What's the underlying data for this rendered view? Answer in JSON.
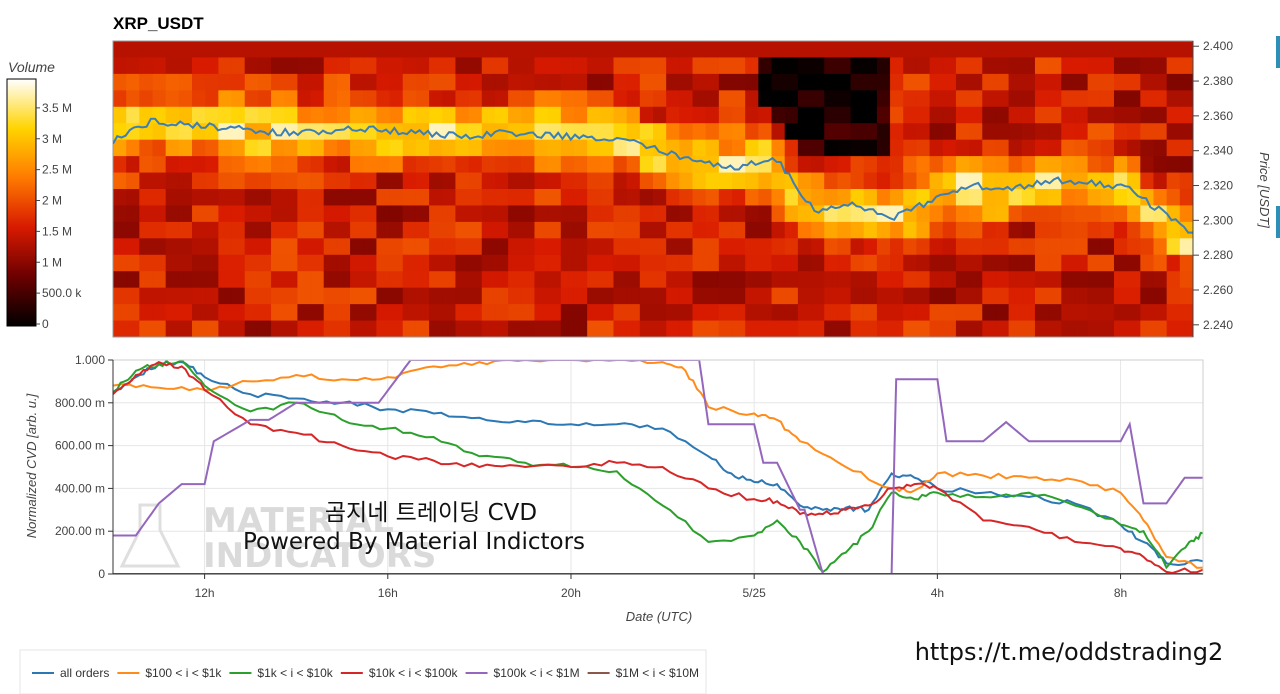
{
  "chart_data": [
    {
      "type": "heatmap",
      "title": "XRP_USDT",
      "colorbar": {
        "label": "Volume",
        "ticks": [
          "0",
          "500.0 k",
          "1 M",
          "1.5 M",
          "2 M",
          "2.5 M",
          "3 M",
          "3.5 M"
        ],
        "range": [
          0,
          4000000
        ]
      },
      "y_right_label": "Price [USDT]",
      "y_right_ticks": [
        "2.240",
        "2.260",
        "2.280",
        "2.300",
        "2.320",
        "2.340",
        "2.360",
        "2.380",
        "2.400"
      ],
      "ylim": [
        2.233,
        2.403
      ],
      "price_line_color": "#3a7fb8",
      "price_series": {
        "x": [
          0,
          1,
          2,
          3,
          4,
          5,
          6,
          7,
          8,
          9,
          10,
          11,
          12,
          13,
          14,
          15,
          16,
          17,
          18,
          19,
          20,
          21,
          22,
          23,
          24,
          25,
          26,
          27,
          28
        ],
        "y": [
          2.346,
          2.357,
          2.355,
          2.353,
          2.351,
          2.35,
          2.353,
          2.352,
          2.35,
          2.348,
          2.35,
          2.349,
          2.348,
          2.347,
          2.34,
          2.334,
          2.33,
          2.336,
          2.305,
          2.309,
          2.302,
          2.311,
          2.32,
          2.318,
          2.323,
          2.322,
          2.319,
          2.303,
          2.287
        ]
      }
    },
    {
      "type": "line",
      "xlabel": "Date (UTC)",
      "ylabel": "Normalized CVD [arb. u.]",
      "x_ticks": [
        "12h",
        "16h",
        "20h",
        "5/25",
        "4h",
        "8h"
      ],
      "x_tick_positions": [
        12,
        16,
        20,
        24,
        28,
        32
      ],
      "xlim": [
        10,
        33.8
      ],
      "y_ticks": [
        "0",
        "200.00 m",
        "400.00 m",
        "600.00 m",
        "800.00 m",
        "1.000"
      ],
      "ylim": [
        0,
        1
      ],
      "grid": true,
      "legend_position": "bottom-left",
      "series": [
        {
          "name": "all orders",
          "color": "#2b78b4",
          "x": [
            10,
            10.5,
            11,
            11.5,
            12,
            13,
            14,
            15,
            16,
            17,
            18,
            19,
            20,
            21,
            22,
            23,
            23.5,
            24,
            24.5,
            25,
            25.5,
            26,
            26.5,
            27,
            27.5,
            28,
            29,
            30,
            31,
            32,
            32.5,
            33,
            33.8
          ],
          "y": [
            0.85,
            0.92,
            0.98,
            0.99,
            0.92,
            0.84,
            0.82,
            0.8,
            0.77,
            0.75,
            0.73,
            0.71,
            0.7,
            0.7,
            0.68,
            0.55,
            0.47,
            0.43,
            0.42,
            0.32,
            0.3,
            0.31,
            0.3,
            0.47,
            0.45,
            0.4,
            0.38,
            0.36,
            0.33,
            0.23,
            0.15,
            0.05,
            0.06
          ]
        },
        {
          "name": "$100 < i < $1k",
          "color": "#ff8c1a",
          "x": [
            10,
            11,
            12,
            13,
            14,
            15,
            16,
            17,
            18,
            19,
            20,
            21,
            22,
            22.5,
            23,
            24,
            24.5,
            25,
            26,
            27,
            27.5,
            28,
            29,
            30,
            31,
            32,
            32.5,
            33,
            33.8
          ],
          "y": [
            0.88,
            0.87,
            0.86,
            0.9,
            0.93,
            0.91,
            0.92,
            0.97,
            0.99,
            1.0,
            1.0,
            1.0,
            0.99,
            0.95,
            0.78,
            0.75,
            0.72,
            0.62,
            0.5,
            0.4,
            0.39,
            0.47,
            0.46,
            0.45,
            0.44,
            0.38,
            0.25,
            0.08,
            0.03
          ]
        },
        {
          "name": "$1k < i < $10k",
          "color": "#2ca02c",
          "x": [
            10,
            10.5,
            11,
            11.5,
            12,
            13,
            14,
            15,
            16,
            17,
            18,
            19,
            20,
            21,
            22,
            23,
            24,
            24.5,
            25,
            25.5,
            26,
            26.5,
            27,
            27.5,
            28,
            29,
            30,
            31,
            32,
            32.5,
            33,
            33.5,
            33.8
          ],
          "y": [
            0.85,
            0.95,
            0.98,
            1.0,
            0.88,
            0.76,
            0.8,
            0.72,
            0.68,
            0.64,
            0.55,
            0.52,
            0.5,
            0.48,
            0.32,
            0.15,
            0.18,
            0.25,
            0.15,
            0.01,
            0.1,
            0.2,
            0.38,
            0.35,
            0.38,
            0.36,
            0.38,
            0.32,
            0.23,
            0.2,
            0.03,
            0.15,
            0.19
          ]
        },
        {
          "name": "$10k < i < $100k",
          "color": "#d62728",
          "x": [
            10,
            10.5,
            11,
            11.5,
            12,
            13,
            14,
            15,
            16,
            17,
            18,
            19,
            20,
            21,
            22,
            23,
            24,
            24.5,
            25,
            25.5,
            26,
            26.5,
            27,
            27.5,
            28,
            29,
            30,
            31,
            32,
            32.5,
            33,
            33.8
          ],
          "y": [
            0.84,
            0.93,
            0.99,
            0.97,
            0.86,
            0.7,
            0.66,
            0.6,
            0.55,
            0.53,
            0.5,
            0.5,
            0.5,
            0.52,
            0.5,
            0.4,
            0.35,
            0.34,
            0.28,
            0.28,
            0.3,
            0.32,
            0.4,
            0.42,
            0.4,
            0.25,
            0.22,
            0.15,
            0.12,
            0.08,
            0.01,
            0.02
          ]
        },
        {
          "name": "$100k < i < $1M",
          "color": "#9467bd",
          "x": [
            10,
            10.5,
            11,
            11.5,
            12,
            12.2,
            13,
            13.4,
            14,
            15,
            15.8,
            16.5,
            17,
            18,
            19,
            20,
            21,
            22,
            22.8,
            23,
            23.5,
            24,
            24.2,
            24.5,
            25,
            25.1,
            25.5,
            26,
            27,
            27.1,
            28,
            28.2,
            29,
            29.5,
            30,
            31,
            32,
            32.2,
            32.5,
            33,
            33.4,
            33.8
          ],
          "y": [
            0.18,
            0.18,
            0.33,
            0.42,
            0.42,
            0.62,
            0.72,
            0.72,
            0.8,
            0.8,
            0.8,
            1.0,
            1.0,
            1.0,
            1.0,
            1.0,
            1.0,
            1.0,
            1.0,
            0.7,
            0.7,
            0.7,
            0.52,
            0.52,
            0.3,
            0.3,
            0.0,
            0.0,
            0.0,
            0.91,
            0.91,
            0.62,
            0.62,
            0.71,
            0.62,
            0.62,
            0.62,
            0.7,
            0.33,
            0.33,
            0.45,
            0.45
          ]
        },
        {
          "name": "$1M < i < $10M",
          "color": "#8c564b",
          "x": [
            10,
            33.8
          ],
          "y": [
            0,
            0
          ]
        }
      ]
    }
  ],
  "overlay": {
    "line1": "곰지네 트레이딩 CVD",
    "line2": "Powered By Material Indictors"
  },
  "watermark": {
    "line1": "MATERIAL",
    "line2": "INDICATORS"
  },
  "url": "https://t.me/oddstrading2"
}
